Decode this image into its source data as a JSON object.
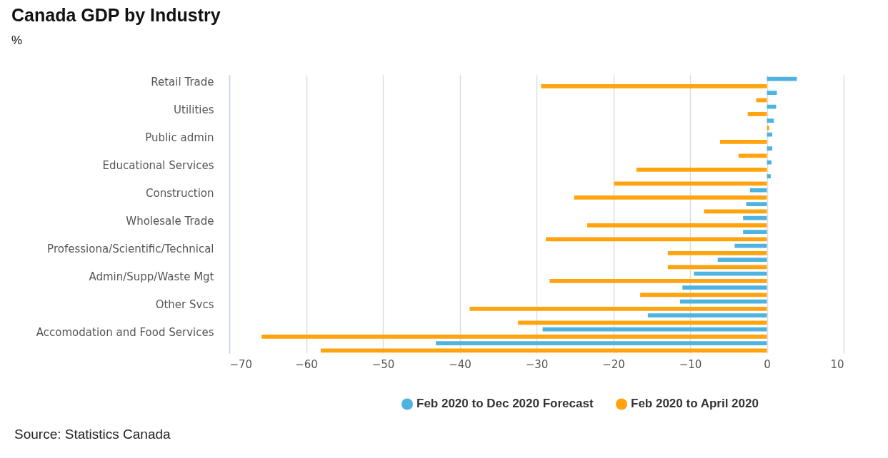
{
  "chart_data": {
    "type": "bar",
    "orientation": "horizontal",
    "title": "Canada GDP by Industry",
    "subtitle": "%",
    "categories": [
      "Retail Trade",
      null,
      "Utilities",
      null,
      "Public admin",
      null,
      "Educational Services",
      null,
      "Construction",
      null,
      "Wholesale Trade",
      null,
      "Professiona/Scientific/Technical",
      null,
      "Admin/Supp/Waste Mgt",
      null,
      "Other Svcs",
      null,
      "Accomodation and Food Services",
      null
    ],
    "series": [
      {
        "name": "Feb 2020 to Dec 2020 Forecast",
        "color": "#4fb3e0",
        "values": [
          3.9,
          1.3,
          1.2,
          0.9,
          0.7,
          0.7,
          0.6,
          0.5,
          -2.2,
          -2.7,
          -3.1,
          -3.1,
          -4.2,
          -6.4,
          -9.5,
          -11.0,
          -11.3,
          -15.5,
          -29.2,
          -43.1
        ]
      },
      {
        "name": "Feb 2020 to April 2020",
        "color": "#ffa40f",
        "values": [
          -29.4,
          -1.4,
          -2.5,
          0.3,
          -6.1,
          -3.7,
          -17,
          -19.9,
          -25.1,
          -8.2,
          -23.4,
          -28.8,
          -12.9,
          -12.9,
          -28.3,
          -16.5,
          -38.7,
          -32.4,
          -65.8,
          -58.1
        ]
      }
    ],
    "xlim": [
      -70,
      10
    ],
    "xticks": [
      -70,
      -60,
      -50,
      -40,
      -30,
      -20,
      -10,
      0,
      10
    ],
    "grid": "x",
    "legend": "bottom right",
    "annotations": [
      "Source: Statistics Canada"
    ]
  }
}
